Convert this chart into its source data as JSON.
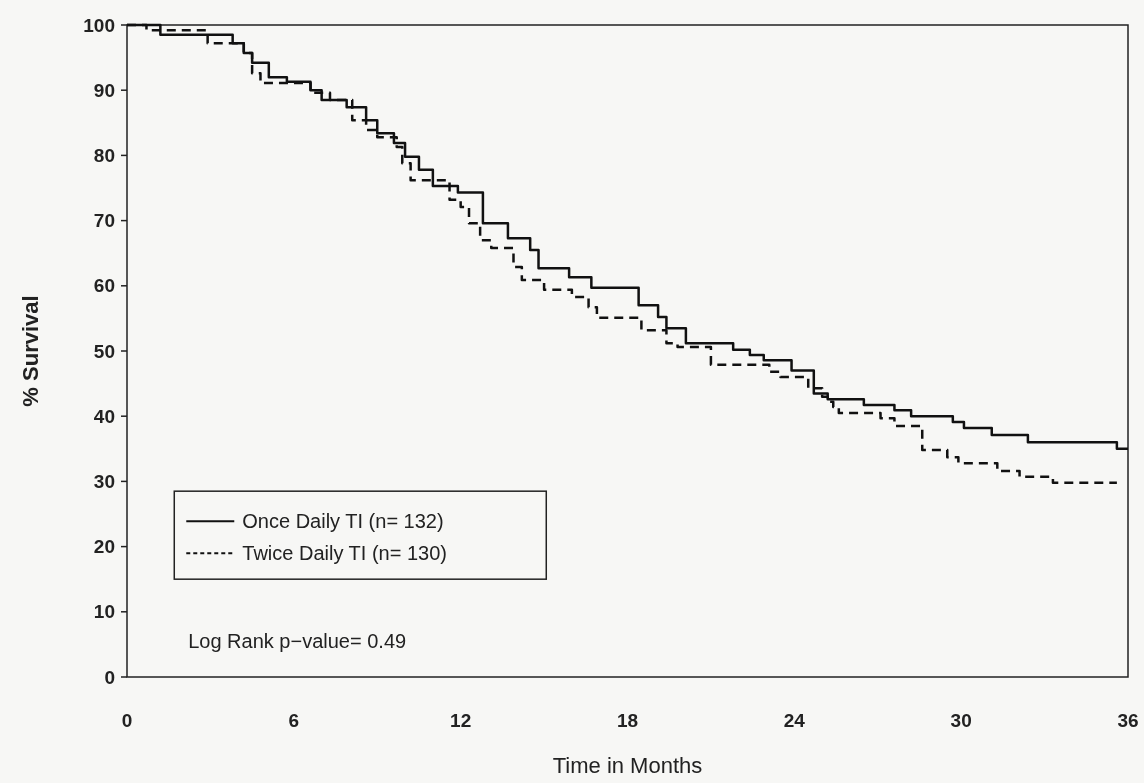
{
  "chart_data": {
    "type": "line",
    "xlabel": "Time in Months",
    "ylabel": "% Survival",
    "xlim": [
      0,
      36
    ],
    "xticks": [
      0,
      6,
      12,
      18,
      24,
      30,
      36
    ],
    "ylim": [
      0,
      100
    ],
    "yticks": [
      0,
      10,
      20,
      30,
      40,
      50,
      60,
      70,
      80,
      90,
      100
    ],
    "grid": false,
    "legend": "bottom left",
    "annotations": [
      "Log Rank p−value= 0.49"
    ],
    "series": [
      {
        "name": "Once Daily TI (n= 132)",
        "color": "#111111",
        "line_style": "solid",
        "x": [
          0,
          1.2,
          1.2,
          3.8,
          3.8,
          4.2,
          4.2,
          4.5,
          4.5,
          5.1,
          5.1,
          5.75,
          5.75,
          6.6,
          6.6,
          7.0,
          7.0,
          7.9,
          7.9,
          8.6,
          8.6,
          9.0,
          9.0,
          9.6,
          9.6,
          10.0,
          10.0,
          10.5,
          10.5,
          11.0,
          11.0,
          11.9,
          11.9,
          12.8,
          12.8,
          13.7,
          13.7,
          14.5,
          14.5,
          14.8,
          14.8,
          15.9,
          15.9,
          16.7,
          16.7,
          18.4,
          18.4,
          19.1,
          19.1,
          19.4,
          19.4,
          20.1,
          20.1,
          21.8,
          21.8,
          22.4,
          22.4,
          22.9,
          22.9,
          23.9,
          23.9,
          24.7,
          24.7,
          25.2,
          25.2,
          26.5,
          26.5,
          27.6,
          27.6,
          28.2,
          28.2,
          29.7,
          29.7,
          30.1,
          30.1,
          31.1,
          31.1,
          32.4,
          32.4,
          35.6,
          35.6,
          36
        ],
        "values": [
          100,
          100,
          98.5,
          98.5,
          97.2,
          97.2,
          95.7,
          95.7,
          94.2,
          94.2,
          92,
          92,
          91.3,
          91.3,
          90,
          90,
          88.5,
          88.5,
          87.4,
          87.4,
          85.4,
          85.4,
          83.4,
          83.4,
          81.9,
          81.9,
          79.8,
          79.8,
          77.8,
          77.8,
          75.3,
          75.3,
          74.3,
          74.3,
          69.6,
          69.6,
          67.3,
          67.3,
          65.5,
          65.5,
          62.7,
          62.7,
          61.3,
          61.3,
          59.7,
          59.7,
          57,
          57,
          55.2,
          55.2,
          53.5,
          53.5,
          51.2,
          51.2,
          50.2,
          50.2,
          49.4,
          49.4,
          48.6,
          48.6,
          47,
          47,
          43.5,
          43.5,
          42.6,
          42.6,
          41.7,
          41.7,
          40.9,
          40.9,
          40,
          40,
          39.1,
          39.1,
          38.2,
          38.2,
          37.1,
          37.1,
          36,
          36,
          35,
          35
        ]
      },
      {
        "name": "Twice Daily TI (n= 130)",
        "color": "#111111",
        "line_style": "dashed",
        "x": [
          0,
          0.7,
          0.7,
          2.9,
          2.9,
          4.2,
          4.2,
          4.5,
          4.5,
          4.8,
          4.8,
          6.6,
          6.6,
          7.3,
          7.3,
          8.1,
          8.1,
          8.6,
          8.6,
          9.0,
          9.0,
          9.7,
          9.7,
          9.9,
          9.9,
          10.2,
          10.2,
          11.6,
          11.6,
          12.0,
          12.0,
          12.3,
          12.3,
          12.7,
          12.7,
          13.1,
          13.1,
          13.9,
          13.9,
          14.2,
          14.2,
          15.0,
          15.0,
          16.0,
          16.0,
          16.6,
          16.6,
          16.9,
          16.9,
          18.5,
          18.5,
          19.4,
          19.4,
          19.8,
          19.8,
          21.0,
          21.0,
          23.1,
          23.1,
          23.5,
          23.5,
          24.5,
          24.5,
          25.0,
          25.0,
          25.2,
          25.2,
          25.4,
          25.4,
          25.6,
          25.6,
          27.1,
          27.1,
          27.6,
          27.6,
          28.6,
          28.6,
          29.5,
          29.5,
          29.9,
          29.9,
          31.3,
          31.3,
          32.1,
          32.1,
          33.3,
          33.3,
          35.6
        ],
        "values": [
          100,
          100,
          99.2,
          99.2,
          97.2,
          97.2,
          95.7,
          95.7,
          92.6,
          92.6,
          91.1,
          91.1,
          89.6,
          89.6,
          88.5,
          88.5,
          85.4,
          85.4,
          83.9,
          83.9,
          82.8,
          82.8,
          81.3,
          81.3,
          78.8,
          78.8,
          76.2,
          76.2,
          73.2,
          73.2,
          72.1,
          72.1,
          69.6,
          69.6,
          67,
          67,
          65.8,
          65.8,
          62.9,
          62.9,
          60.9,
          60.9,
          59.4,
          59.4,
          58.3,
          58.3,
          56.7,
          56.7,
          55.1,
          55.1,
          53.2,
          53.2,
          51.2,
          51.2,
          50.6,
          50.6,
          47.9,
          47.9,
          46.8,
          46.8,
          46,
          46,
          44.3,
          44.3,
          43,
          43,
          42.2,
          42.2,
          41.4,
          41.4,
          40.5,
          40.5,
          39.7,
          39.7,
          38.5,
          38.5,
          34.8,
          34.8,
          33.7,
          33.7,
          32.8,
          32.8,
          31.6,
          31.6,
          30.7,
          30.7,
          29.8,
          29.8
        ]
      }
    ]
  }
}
